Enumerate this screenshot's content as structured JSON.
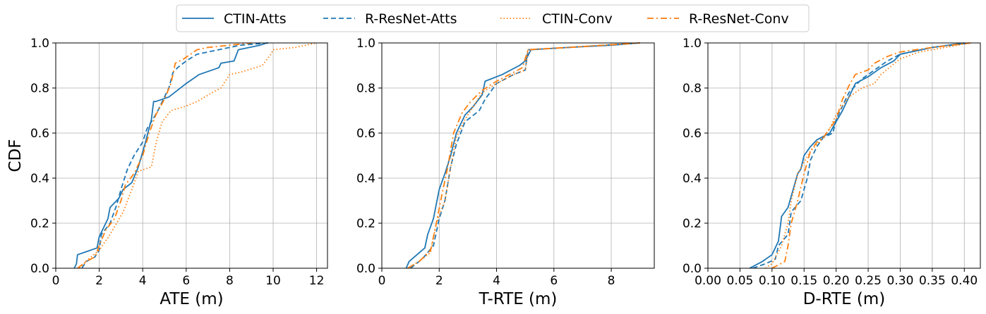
{
  "legend": {
    "placement": "top-center",
    "entries": [
      {
        "label": "CTIN-Atts",
        "color": "#1f77b4",
        "dash": "solid"
      },
      {
        "label": "R-ResNet-Atts",
        "color": "#1f77b4",
        "dash": "dashed"
      },
      {
        "label": "CTIN-Conv",
        "color": "#ff7f0e",
        "dash": "dotted"
      },
      {
        "label": "R-ResNet-Conv",
        "color": "#ff7f0e",
        "dash": "dashdot"
      }
    ]
  },
  "chart_data": [
    {
      "type": "line",
      "xlabel": "ATE (m)",
      "ylabel": "CDF",
      "xlim": [
        0,
        12.5
      ],
      "ylim": [
        0,
        1
      ],
      "xticks": [
        0,
        2,
        4,
        6,
        8,
        10,
        12
      ],
      "xtick_labels": [
        "0",
        "2",
        "4",
        "6",
        "8",
        "10",
        "12"
      ],
      "yticks": [
        0,
        0.2,
        0.4,
        0.6,
        0.8,
        1.0
      ],
      "ytick_labels": [
        "0.0",
        "0.2",
        "0.4",
        "0.6",
        "0.8",
        "1.0"
      ],
      "grid": true,
      "series": [
        {
          "name": "CTIN-Atts",
          "color": "#1f77b4",
          "dash": "solid",
          "x": [
            0.85,
            0.95,
            1.0,
            1.9,
            2.0,
            2.2,
            2.4,
            2.5,
            2.9,
            3.1,
            3.5,
            3.8,
            4.1,
            4.4,
            4.5,
            4.6,
            5.2,
            5.6,
            6.0,
            6.6,
            7.5,
            7.6,
            8.2,
            8.4,
            9.4,
            9.7
          ],
          "y": [
            0.0,
            0.02,
            0.06,
            0.09,
            0.14,
            0.18,
            0.22,
            0.27,
            0.31,
            0.35,
            0.38,
            0.45,
            0.55,
            0.66,
            0.74,
            0.74,
            0.76,
            0.79,
            0.82,
            0.86,
            0.89,
            0.91,
            0.92,
            0.97,
            0.99,
            1.0
          ]
        },
        {
          "name": "R-ResNet-Atts",
          "color": "#1f77b4",
          "dash": "dashed",
          "x": [
            1.2,
            1.4,
            1.8,
            2.0,
            2.1,
            2.5,
            2.8,
            3.0,
            3.3,
            3.6,
            4.0,
            4.2,
            4.4,
            4.7,
            5.0,
            5.2,
            5.4,
            5.6,
            6.0,
            6.5,
            7.5,
            8.5,
            9.8
          ],
          "y": [
            0.0,
            0.03,
            0.05,
            0.08,
            0.15,
            0.2,
            0.28,
            0.35,
            0.44,
            0.5,
            0.56,
            0.62,
            0.65,
            0.7,
            0.76,
            0.8,
            0.87,
            0.89,
            0.92,
            0.95,
            0.97,
            0.99,
            1.0
          ]
        },
        {
          "name": "CTIN-Conv",
          "color": "#ff7f0e",
          "dash": "dotted",
          "x": [
            1.1,
            1.5,
            2.0,
            2.5,
            3.1,
            3.5,
            3.8,
            4.4,
            4.6,
            4.8,
            4.9,
            5.3,
            6.0,
            6.5,
            7.2,
            7.6,
            8.0,
            8.5,
            9.5,
            9.9,
            10.0,
            11.0,
            12.0
          ],
          "y": [
            0.0,
            0.04,
            0.08,
            0.15,
            0.25,
            0.35,
            0.43,
            0.45,
            0.55,
            0.62,
            0.65,
            0.7,
            0.72,
            0.74,
            0.78,
            0.8,
            0.86,
            0.87,
            0.9,
            0.95,
            0.97,
            0.98,
            1.0
          ]
        },
        {
          "name": "R-ResNet-Conv",
          "color": "#ff7f0e",
          "dash": "dashdot",
          "x": [
            1.0,
            1.4,
            1.8,
            2.0,
            2.3,
            2.7,
            3.0,
            3.2,
            3.6,
            4.0,
            4.3,
            4.6,
            5.0,
            5.3,
            5.5,
            5.9,
            6.5,
            7.0,
            8.0,
            9.0
          ],
          "y": [
            0.0,
            0.03,
            0.05,
            0.1,
            0.17,
            0.22,
            0.3,
            0.37,
            0.42,
            0.5,
            0.6,
            0.68,
            0.75,
            0.82,
            0.91,
            0.93,
            0.97,
            0.98,
            0.99,
            1.0
          ]
        }
      ]
    },
    {
      "type": "line",
      "xlabel": "T-RTE (m)",
      "ylabel": "",
      "xlim": [
        0,
        9.5
      ],
      "ylim": [
        0,
        1
      ],
      "xticks": [
        0,
        2,
        4,
        6,
        8
      ],
      "xtick_labels": [
        "0",
        "2",
        "4",
        "6",
        "8"
      ],
      "yticks": [
        0,
        0.2,
        0.4,
        0.6,
        0.8,
        1.0
      ],
      "ytick_labels": [
        "0.0",
        "0.2",
        "0.4",
        "0.6",
        "0.8",
        "1.0"
      ],
      "grid": true,
      "series": [
        {
          "name": "CTIN-Atts",
          "color": "#1f77b4",
          "dash": "solid",
          "x": [
            0.85,
            0.95,
            1.5,
            1.6,
            1.8,
            2.0,
            2.2,
            2.4,
            2.6,
            2.9,
            3.2,
            3.5,
            3.6,
            4.2,
            4.8,
            5.0,
            5.2,
            6.5,
            8.0,
            9.0
          ],
          "y": [
            0.0,
            0.03,
            0.09,
            0.15,
            0.22,
            0.35,
            0.42,
            0.5,
            0.6,
            0.68,
            0.72,
            0.77,
            0.83,
            0.86,
            0.9,
            0.92,
            0.97,
            0.98,
            0.99,
            1.0
          ]
        },
        {
          "name": "R-ResNet-Atts",
          "color": "#1f77b4",
          "dash": "dashed",
          "x": [
            1.0,
            1.4,
            1.8,
            2.0,
            2.2,
            2.4,
            2.6,
            2.9,
            3.4,
            3.6,
            4.0,
            4.6,
            5.0,
            5.1,
            6.5,
            9.0
          ],
          "y": [
            0.0,
            0.04,
            0.1,
            0.22,
            0.3,
            0.45,
            0.55,
            0.65,
            0.7,
            0.75,
            0.82,
            0.86,
            0.88,
            0.97,
            0.98,
            1.0
          ]
        },
        {
          "name": "CTIN-Conv",
          "color": "#ff7f0e",
          "dash": "dotted",
          "x": [
            0.9,
            1.3,
            1.7,
            1.9,
            2.2,
            2.4,
            2.6,
            2.9,
            3.2,
            3.5,
            4.0,
            4.6,
            5.0,
            5.1,
            6.5,
            9.0
          ],
          "y": [
            0.0,
            0.03,
            0.07,
            0.2,
            0.3,
            0.45,
            0.58,
            0.66,
            0.72,
            0.78,
            0.82,
            0.86,
            0.88,
            0.97,
            0.98,
            1.0
          ]
        },
        {
          "name": "R-ResNet-Conv",
          "color": "#ff7f0e",
          "dash": "dashdot",
          "x": [
            0.9,
            1.3,
            1.7,
            1.9,
            2.1,
            2.3,
            2.5,
            2.8,
            3.1,
            3.5,
            4.0,
            4.6,
            4.9,
            5.1,
            6.5,
            9.0
          ],
          "y": [
            0.0,
            0.03,
            0.08,
            0.2,
            0.33,
            0.45,
            0.6,
            0.69,
            0.74,
            0.79,
            0.83,
            0.87,
            0.89,
            0.97,
            0.98,
            1.0
          ]
        }
      ]
    },
    {
      "type": "line",
      "xlabel": "D-RTE (m)",
      "ylabel": "",
      "xlim": [
        0,
        0.425
      ],
      "ylim": [
        0,
        1
      ],
      "xticks": [
        0,
        0.05,
        0.1,
        0.15,
        0.2,
        0.25,
        0.3,
        0.35,
        0.4
      ],
      "xtick_labels": [
        "0.00",
        "0.05",
        "0.10",
        "0.15",
        "0.20",
        "0.25",
        "0.30",
        "0.35",
        "0.40"
      ],
      "yticks": [
        0,
        0.2,
        0.4,
        0.6,
        0.8,
        1.0
      ],
      "ytick_labels": [
        "0.0",
        "0.2",
        "0.4",
        "0.6",
        "0.8",
        "1.0"
      ],
      "grid": true,
      "series": [
        {
          "name": "CTIN-Atts",
          "color": "#1f77b4",
          "dash": "solid",
          "x": [
            0.065,
            0.085,
            0.1,
            0.11,
            0.115,
            0.125,
            0.13,
            0.14,
            0.145,
            0.15,
            0.16,
            0.17,
            0.19,
            0.2,
            0.21,
            0.22,
            0.23,
            0.25,
            0.27,
            0.29,
            0.3,
            0.35,
            0.4
          ],
          "y": [
            0.0,
            0.03,
            0.06,
            0.12,
            0.23,
            0.27,
            0.32,
            0.42,
            0.44,
            0.5,
            0.54,
            0.57,
            0.6,
            0.65,
            0.7,
            0.76,
            0.82,
            0.85,
            0.89,
            0.92,
            0.95,
            0.98,
            1.0
          ]
        },
        {
          "name": "R-ResNet-Atts",
          "color": "#1f77b4",
          "dash": "dashed",
          "x": [
            0.07,
            0.09,
            0.105,
            0.11,
            0.125,
            0.13,
            0.145,
            0.155,
            0.16,
            0.17,
            0.18,
            0.195,
            0.2,
            0.21,
            0.22,
            0.24,
            0.26,
            0.28,
            0.3,
            0.35,
            0.41
          ],
          "y": [
            0.0,
            0.02,
            0.04,
            0.1,
            0.15,
            0.25,
            0.3,
            0.4,
            0.48,
            0.54,
            0.58,
            0.6,
            0.66,
            0.72,
            0.78,
            0.84,
            0.88,
            0.92,
            0.95,
            0.98,
            1.0
          ]
        },
        {
          "name": "CTIN-Conv",
          "color": "#ff7f0e",
          "dash": "dotted",
          "x": [
            0.09,
            0.1,
            0.115,
            0.125,
            0.13,
            0.14,
            0.15,
            0.16,
            0.17,
            0.18,
            0.19,
            0.2,
            0.21,
            0.22,
            0.24,
            0.26,
            0.27,
            0.3,
            0.33,
            0.41
          ],
          "y": [
            0.0,
            0.02,
            0.1,
            0.2,
            0.3,
            0.42,
            0.47,
            0.52,
            0.55,
            0.58,
            0.62,
            0.68,
            0.72,
            0.76,
            0.8,
            0.82,
            0.86,
            0.93,
            0.96,
            1.0
          ]
        },
        {
          "name": "R-ResNet-Conv",
          "color": "#ff7f0e",
          "dash": "dashdot",
          "x": [
            0.1,
            0.12,
            0.125,
            0.13,
            0.14,
            0.15,
            0.16,
            0.17,
            0.18,
            0.19,
            0.2,
            0.21,
            0.22,
            0.23,
            0.25,
            0.26,
            0.28,
            0.3,
            0.35,
            0.41
          ],
          "y": [
            0.0,
            0.03,
            0.1,
            0.2,
            0.3,
            0.42,
            0.52,
            0.56,
            0.58,
            0.62,
            0.66,
            0.75,
            0.81,
            0.86,
            0.88,
            0.91,
            0.94,
            0.96,
            0.98,
            1.0
          ]
        }
      ]
    }
  ]
}
